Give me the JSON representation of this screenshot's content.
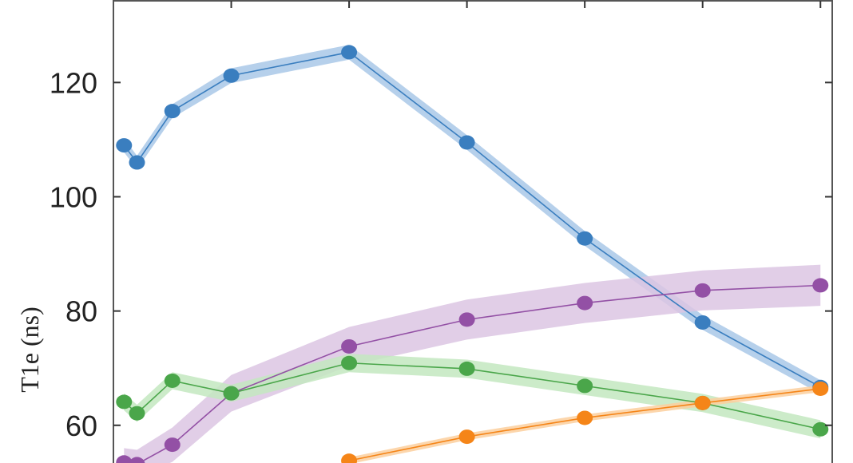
{
  "chart_data": {
    "type": "line",
    "title": "",
    "xlabel": "",
    "ylabel": "T1e (ns)",
    "xlim": [
      0,
      6.1
    ],
    "ylim": [
      53.4,
      134.3
    ],
    "yticks": [
      60,
      80,
      100,
      120
    ],
    "ytick_labels": [
      "60",
      "80",
      "100",
      "120"
    ],
    "xticks": [
      1,
      2,
      3,
      4,
      5,
      6
    ],
    "grid": false,
    "legend": "none",
    "series": [
      {
        "color": "#3a7ebf",
        "band_color": "#a9c8e8",
        "x": [
          0.09,
          0.2,
          0.5,
          1,
          2,
          3,
          4,
          5,
          6
        ],
        "y": [
          109,
          106,
          115,
          121.2,
          125.3,
          109.5,
          92.7,
          78,
          66.7
        ],
        "band": [
          1.2,
          1.2,
          1.2,
          1.3,
          1.3,
          1.3,
          1.3,
          1.3,
          1.2
        ]
      },
      {
        "color": "#9350a5",
        "band_color": "#dcc6e3",
        "x": [
          0.09,
          0.2,
          0.5,
          1,
          2,
          3,
          4,
          5,
          6
        ],
        "y": [
          53.5,
          53.2,
          56.6,
          65.6,
          73.8,
          78.5,
          81.4,
          83.6,
          84.5
        ],
        "band": [
          2.5,
          2.5,
          3,
          3.2,
          3.4,
          3.5,
          3.5,
          3.5,
          3.6
        ]
      },
      {
        "color": "#4aa64a",
        "band_color": "#c3e7bf",
        "x": [
          0.09,
          0.2,
          0.5,
          1,
          2,
          3,
          4,
          5,
          6
        ],
        "y": [
          64.1,
          62.1,
          67.8,
          65.6,
          70.9,
          69.9,
          66.9,
          63.9,
          59.3
        ],
        "band": [
          1.5,
          1.5,
          1.5,
          1.5,
          1.6,
          1.6,
          1.6,
          1.6,
          1.6
        ]
      },
      {
        "color": "#f58518",
        "band_color": "#fbcf9e",
        "x": [
          2,
          3,
          4,
          5,
          6
        ],
        "y": [
          53.8,
          58.0,
          61.3,
          63.9,
          66.4
        ],
        "band": [
          0.6,
          0.6,
          0.6,
          0.6,
          0.6
        ]
      }
    ]
  }
}
